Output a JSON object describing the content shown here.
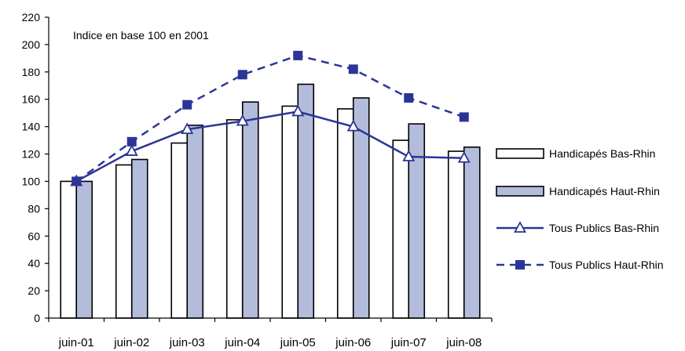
{
  "chart_data": {
    "type": "bar",
    "annotation": "Indice en base 100 en 2001",
    "categories": [
      "juin-01",
      "juin-02",
      "juin-03",
      "juin-04",
      "juin-05",
      "juin-06",
      "juin-07",
      "juin-08"
    ],
    "ylim": [
      0,
      220
    ],
    "yticks": [
      0,
      20,
      40,
      60,
      80,
      100,
      120,
      140,
      160,
      180,
      200,
      220
    ],
    "ytick_labels": [
      "0",
      "20",
      "40",
      "60",
      "80",
      "100",
      "120",
      "140",
      "160",
      "180",
      "200",
      "220"
    ],
    "grid": false,
    "legend_position": "right",
    "series": [
      {
        "name": "Handicapés Bas-Rhin",
        "kind": "bar",
        "color": "#ffffff",
        "values": [
          100,
          112,
          128,
          145,
          155,
          153,
          130,
          122
        ]
      },
      {
        "name": "Handicapés Haut-Rhin",
        "kind": "bar",
        "color": "#b4bcdc",
        "values": [
          100,
          116,
          141,
          158,
          171,
          161,
          142,
          125
        ]
      },
      {
        "name": "Tous Publics Bas-Rhin",
        "kind": "line",
        "color": "#2b3596",
        "marker": "triangle-open",
        "line_style": "solid",
        "values": [
          100,
          122,
          138,
          144,
          151,
          140,
          118,
          117
        ]
      },
      {
        "name": "Tous Publics Haut-Rhin",
        "kind": "line",
        "color": "#2b3596",
        "marker": "square-filled",
        "line_style": "dashed",
        "values": [
          100,
          129,
          156,
          178,
          192,
          182,
          161,
          147
        ]
      }
    ]
  }
}
